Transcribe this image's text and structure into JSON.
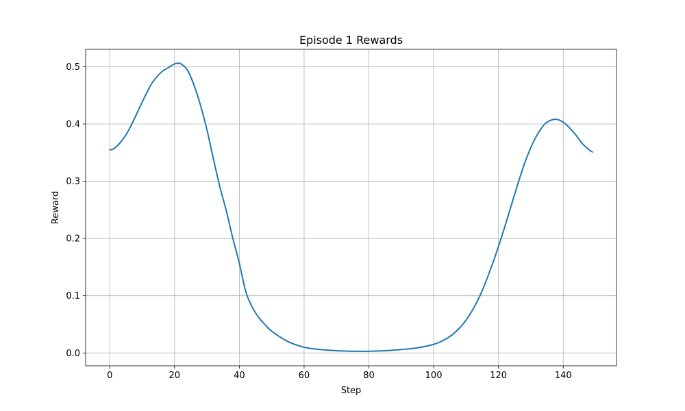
{
  "chart_data": {
    "type": "line",
    "title": "Episode 1 Rewards",
    "xlabel": "Step",
    "ylabel": "Reward",
    "xlim": [
      -7.45,
      156.45
    ],
    "ylim": [
      -0.0224,
      0.5304
    ],
    "xticks": [
      0,
      20,
      40,
      60,
      80,
      100,
      120,
      140
    ],
    "yticks": [
      0.0,
      0.1,
      0.2,
      0.3,
      0.4,
      0.5
    ],
    "xtick_labels": [
      "0",
      "20",
      "40",
      "60",
      "80",
      "100",
      "120",
      "140"
    ],
    "ytick_labels": [
      "0.0",
      "0.1",
      "0.2",
      "0.3",
      "0.4",
      "0.5"
    ],
    "grid": true,
    "series": [
      {
        "name": "Episode 1",
        "color": "#1f77b4",
        "x": [
          0,
          1,
          3,
          5,
          7,
          10,
          13,
          16,
          18,
          20,
          21,
          22,
          24,
          26,
          28,
          30,
          32,
          34,
          36,
          38,
          40,
          42,
          44,
          46,
          48,
          50,
          55,
          60,
          65,
          70,
          75,
          80,
          85,
          90,
          95,
          100,
          103,
          106,
          109,
          112,
          115,
          118,
          120,
          122,
          125,
          128,
          131,
          134,
          136,
          138,
          140,
          142,
          144,
          146,
          148,
          149
        ],
        "y": [
          0.355,
          0.356,
          0.366,
          0.381,
          0.402,
          0.438,
          0.471,
          0.491,
          0.498,
          0.505,
          0.506,
          0.505,
          0.494,
          0.468,
          0.433,
          0.39,
          0.339,
          0.29,
          0.248,
          0.2,
          0.157,
          0.107,
          0.08,
          0.062,
          0.049,
          0.038,
          0.02,
          0.01,
          0.006,
          0.004,
          0.003,
          0.003,
          0.004,
          0.006,
          0.009,
          0.015,
          0.022,
          0.033,
          0.05,
          0.075,
          0.109,
          0.153,
          0.186,
          0.221,
          0.277,
          0.33,
          0.371,
          0.398,
          0.406,
          0.408,
          0.403,
          0.393,
          0.38,
          0.365,
          0.355,
          0.351
        ]
      }
    ]
  }
}
